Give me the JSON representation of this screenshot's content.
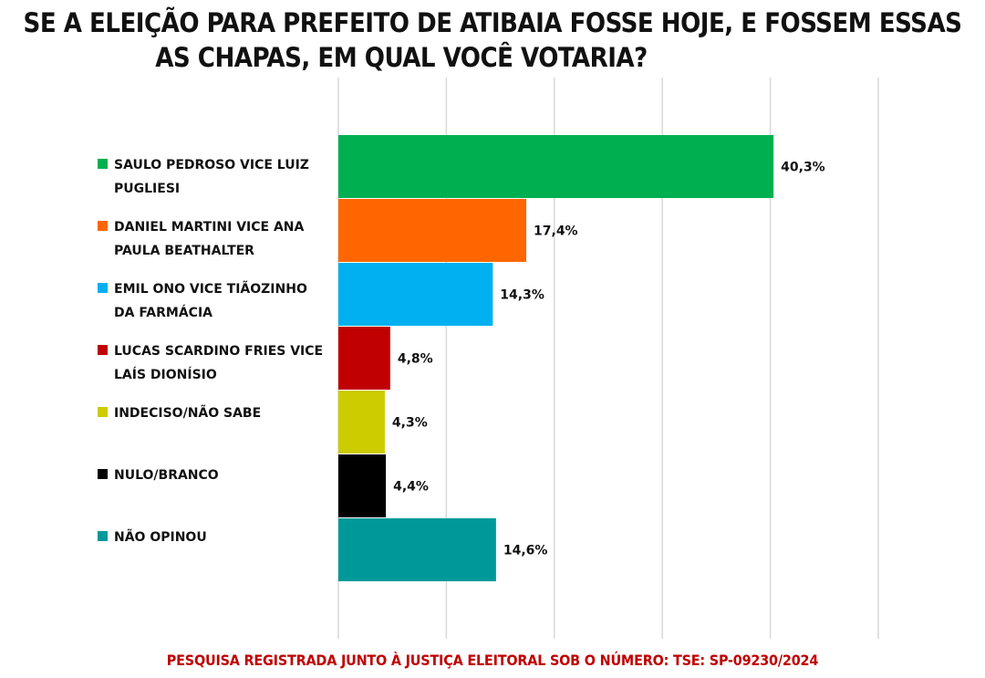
{
  "title_lines": [
    "SE A ELEIÇÃO PARA PREFEITO DE ATIBAIA FOSSE HOJE, E FOSSEM ESSAS",
    "AS CHAPAS, EM QUAL VOCÊ VOTARIA?"
  ],
  "footer": "PESQUISA REGISTRADA JUNTO À JUSTIÇA ELEITORAL SOB O NÚMERO: TSE: SP-09230/2024",
  "chart_data": {
    "type": "bar",
    "orientation": "horizontal",
    "title": "SE A ELEIÇÃO PARA PREFEITO DE ATIBAIA FOSSE HOJE, E FOSSEM ESSAS AS CHAPAS, EM QUAL VOCÊ VOTARIA?",
    "xlim": [
      0,
      50
    ],
    "grid": true,
    "legend_position": "left",
    "categories": [
      [
        "SAULO PEDROSO VICE LUIZ",
        "PUGLIESI"
      ],
      [
        "DANIEL MARTINI VICE ANA",
        "PAULA BEATHALTER"
      ],
      [
        "EMIL ONO VICE TIÃOZINHO",
        "DA FARMÁCIA"
      ],
      [
        "LUCAS SCARDINO FRIES VICE",
        "LAÍS DIONÍSIO"
      ],
      [
        "INDECISO/NÃO SABE"
      ],
      [
        "NULO/BRANCO"
      ],
      [
        "NÃO OPINOU"
      ]
    ],
    "values": [
      40.3,
      17.4,
      14.3,
      4.8,
      4.3,
      4.4,
      14.6
    ],
    "value_labels": [
      "40,3%",
      "17,4%",
      "14,3%",
      "4,8%",
      "4,3%",
      "4,4%",
      "14,6%"
    ],
    "colors": [
      "#00b050",
      "#ff6600",
      "#00b0f0",
      "#c00000",
      "#cccc00",
      "#000000",
      "#009999"
    ]
  }
}
